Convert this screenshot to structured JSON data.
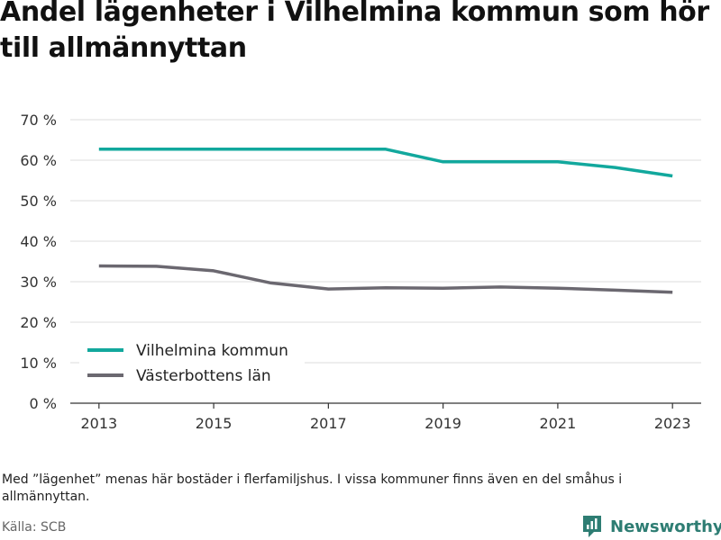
{
  "title": "Andel lägenheter i Vilhelmina kommun som hör till allmännyttan",
  "note": "Med ”lägenhet” menas här bostäder i flerfamiljshus. I vissa kommuner finns även en del småhus i allmännyttan.",
  "source": "Källa: SCB",
  "brand": {
    "name": "Newsworthy",
    "icon": "newsworthy-logo-icon",
    "color": "#2e7d73"
  },
  "chart_data": {
    "type": "line",
    "x": [
      2013,
      2014,
      2015,
      2016,
      2017,
      2018,
      2019,
      2020,
      2021,
      2022,
      2023
    ],
    "series": [
      {
        "name": "Vilhelmina kommun",
        "color": "#12a89d",
        "values": [
          62.7,
          62.7,
          62.7,
          62.7,
          62.7,
          62.7,
          59.6,
          59.6,
          59.6,
          58.2,
          56.1
        ]
      },
      {
        "name": "Västerbottens län",
        "color": "#6b6870",
        "values": [
          33.9,
          33.8,
          32.7,
          29.7,
          28.2,
          28.5,
          28.4,
          28.7,
          28.4,
          27.9,
          27.4
        ]
      }
    ],
    "x_ticks": [
      "2013",
      "2015",
      "2017",
      "2019",
      "2021",
      "2023"
    ],
    "y_ticks": [
      "0 %",
      "10 %",
      "20 %",
      "30 %",
      "40 %",
      "50 %",
      "60 %",
      "70 %"
    ],
    "ylim": [
      0,
      70
    ],
    "xlim": [
      2012.5,
      2023.5
    ],
    "grid": true,
    "legend_position": "bottom-left"
  }
}
